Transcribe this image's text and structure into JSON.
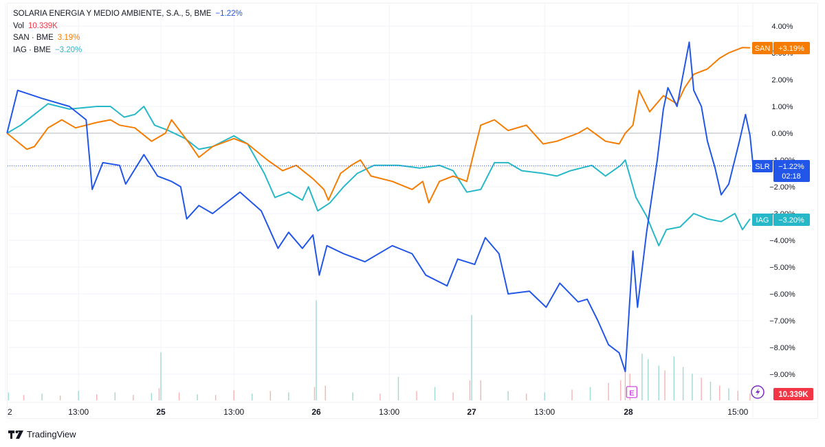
{
  "legend": {
    "main_title": "SOLARIA ENERGIA Y MEDIO AMBIENTE, S.A., 5, BME",
    "main_change": "−1.22%",
    "vol_label": "Vol",
    "vol_value": "10.339K",
    "san_label": "SAN · BME",
    "san_change": "3.19%",
    "iag_label": "IAG · BME",
    "iag_change": "−3.20%"
  },
  "colors": {
    "slr": "#2156e8",
    "san": "#f57c00",
    "iag": "#26b8c8",
    "vol_up": "#9fd9cf",
    "vol_down": "#f7b3b3",
    "vol_label": "#f23645",
    "earnings": "#d04be0",
    "event": "#7b2bbf"
  },
  "brand": "TradingView",
  "chart_data": {
    "type": "line",
    "yaxis": {
      "unit": "%",
      "ylim": [
        -9.6,
        4.3
      ],
      "ticks": [
        "4.00%",
        "3.00%",
        "2.00%",
        "1.00%",
        "0.00%",
        "−1.00%",
        "−2.00%",
        "−3.00%",
        "−4.00%",
        "−5.00%",
        "−6.00%",
        "−7.00%",
        "−8.00%",
        "−9.00%"
      ],
      "tick_values": [
        4,
        3,
        2,
        1,
        0,
        -1,
        -2,
        -3,
        -4,
        -5,
        -6,
        -7,
        -8,
        -9
      ]
    },
    "xaxis": {
      "ticks": [
        {
          "t": "24 09:00",
          "label": "2",
          "bold": false
        },
        {
          "t": "24 13:00",
          "label": "13:00",
          "bold": false
        },
        {
          "t": "25 09:00",
          "label": "25",
          "bold": true
        },
        {
          "t": "25 13:00",
          "label": "13:00",
          "bold": false
        },
        {
          "t": "26 09:00",
          "label": "26",
          "bold": true
        },
        {
          "t": "26 13:00",
          "label": "13:00",
          "bold": false
        },
        {
          "t": "27 09:00",
          "label": "27",
          "bold": true
        },
        {
          "t": "27 13:00",
          "label": "13:00",
          "bold": false
        },
        {
          "t": "28 09:00",
          "label": "28",
          "bold": true
        },
        {
          "t": "28 15:00",
          "label": "15:00",
          "bold": false
        }
      ]
    },
    "grid": true,
    "series": [
      {
        "name": "SLR",
        "tag": "SLR",
        "last_label": "−1.22%",
        "countdown": "02:18",
        "last": -1.22,
        "points": [
          [
            "24 09:05",
            0
          ],
          [
            "24 09:40",
            1.6
          ],
          [
            "24 11:00",
            1.3
          ],
          [
            "24 12:30",
            1.0
          ],
          [
            "24 13:25",
            0.5
          ],
          [
            "24 13:45",
            -2.1
          ],
          [
            "24 14:20",
            -1.1
          ],
          [
            "24 15:15",
            -1.2
          ],
          [
            "24 15:35",
            -1.9
          ],
          [
            "24 16:35",
            -0.8
          ],
          [
            "24 17:20",
            -1.6
          ],
          [
            "25 09:35",
            -1.8
          ],
          [
            "25 10:05",
            -2.0
          ],
          [
            "25 10:25",
            -3.2
          ],
          [
            "25 11:05",
            -2.7
          ],
          [
            "25 11:50",
            -3.0
          ],
          [
            "25 12:35",
            -2.6
          ],
          [
            "25 13:20",
            -2.2
          ],
          [
            "25 14:30",
            -2.9
          ],
          [
            "25 15:25",
            -4.3
          ],
          [
            "25 16:00",
            -3.7
          ],
          [
            "25 16:45",
            -4.3
          ],
          [
            "25 17:20",
            -3.8
          ],
          [
            "26 09:10",
            -5.3
          ],
          [
            "26 09:35",
            -4.2
          ],
          [
            "26 10:30",
            -4.5
          ],
          [
            "26 11:40",
            -4.8
          ],
          [
            "26 13:10",
            -4.2
          ],
          [
            "26 14:15",
            -4.5
          ],
          [
            "26 15:00",
            -5.3
          ],
          [
            "26 16:10",
            -5.7
          ],
          [
            "26 16:45",
            -4.7
          ],
          [
            "27 09:10",
            -4.9
          ],
          [
            "27 09:45",
            -3.9
          ],
          [
            "27 10:30",
            -4.5
          ],
          [
            "27 11:00",
            -6.0
          ],
          [
            "27 12:10",
            -5.9
          ],
          [
            "27 13:05",
            -6.5
          ],
          [
            "27 13:50",
            -5.6
          ],
          [
            "27 14:50",
            -6.3
          ],
          [
            "27 15:20",
            -6.2
          ],
          [
            "27 15:55",
            -7.0
          ],
          [
            "27 16:30",
            -7.9
          ],
          [
            "27 17:05",
            -8.2
          ],
          [
            "27 17:25",
            -8.9
          ],
          [
            "28 09:15",
            -4.4
          ],
          [
            "28 09:30",
            -6.5
          ],
          [
            "28 10:00",
            -3.7
          ],
          [
            "28 10:35",
            -1.0
          ],
          [
            "28 10:55",
            0.9
          ],
          [
            "28 11:10",
            1.7
          ],
          [
            "28 11:40",
            1.0
          ],
          [
            "28 12:10",
            2.8
          ],
          [
            "28 12:20",
            3.4
          ],
          [
            "28 12:35",
            1.6
          ],
          [
            "28 13:00",
            1.0
          ],
          [
            "28 13:20",
            -0.3
          ],
          [
            "28 13:45",
            -1.3
          ],
          [
            "28 14:05",
            -2.3
          ],
          [
            "28 14:30",
            -1.9
          ],
          [
            "28 15:05",
            -0.3
          ],
          [
            "28 15:25",
            0.7
          ],
          [
            "28 15:40",
            -0.1
          ],
          [
            "28 15:50",
            -1.22
          ]
        ]
      },
      {
        "name": "SAN",
        "tag": "SAN",
        "last_label": "+3.19%",
        "last": 3.19,
        "points": [
          [
            "24 09:05",
            0
          ],
          [
            "24 10:10",
            -0.6
          ],
          [
            "24 10:35",
            -0.5
          ],
          [
            "24 11:20",
            0.2
          ],
          [
            "24 12:05",
            0.5
          ],
          [
            "24 12:50",
            0.2
          ],
          [
            "24 14:00",
            0.4
          ],
          [
            "24 14:45",
            0.5
          ],
          [
            "24 15:15",
            0.3
          ],
          [
            "24 16:05",
            0.2
          ],
          [
            "24 17:00",
            -0.3
          ],
          [
            "25 09:15",
            0.0
          ],
          [
            "25 09:35",
            0.5
          ],
          [
            "25 10:35",
            -0.4
          ],
          [
            "25 11:05",
            -0.9
          ],
          [
            "25 11:50",
            -0.5
          ],
          [
            "25 13:00",
            -0.2
          ],
          [
            "25 13:45",
            -0.4
          ],
          [
            "25 14:50",
            -1.0
          ],
          [
            "25 15:40",
            -1.4
          ],
          [
            "25 16:25",
            -1.2
          ],
          [
            "25 17:20",
            -1.7
          ],
          [
            "26 09:25",
            -2.1
          ],
          [
            "26 09:40",
            -2.5
          ],
          [
            "26 10:20",
            -1.5
          ],
          [
            "26 10:55",
            -1.2
          ],
          [
            "26 11:25",
            -1.0
          ],
          [
            "26 12:00",
            -1.6
          ],
          [
            "26 13:10",
            -1.8
          ],
          [
            "26 14:15",
            -2.1
          ],
          [
            "26 14:50",
            -1.8
          ],
          [
            "26 15:10",
            -2.6
          ],
          [
            "26 15:45",
            -1.8
          ],
          [
            "26 16:30",
            -1.6
          ],
          [
            "26 17:15",
            -1.8
          ],
          [
            "27 09:10",
            -0.6
          ],
          [
            "27 09:30",
            0.3
          ],
          [
            "27 10:15",
            0.5
          ],
          [
            "27 11:00",
            0.1
          ],
          [
            "27 12:00",
            0.3
          ],
          [
            "27 12:55",
            -0.4
          ],
          [
            "27 13:40",
            -0.3
          ],
          [
            "27 14:50",
            0.0
          ],
          [
            "27 15:20",
            0.2
          ],
          [
            "27 16:20",
            -0.3
          ],
          [
            "27 17:05",
            -0.4
          ],
          [
            "27 17:25",
            0.0
          ],
          [
            "28 09:15",
            0.3
          ],
          [
            "28 09:35",
            1.6
          ],
          [
            "28 10:10",
            0.8
          ],
          [
            "28 10:55",
            1.4
          ],
          [
            "28 11:40",
            1.1
          ],
          [
            "28 12:05",
            1.7
          ],
          [
            "28 12:35",
            2.2
          ],
          [
            "28 13:20",
            2.4
          ],
          [
            "28 14:00",
            2.8
          ],
          [
            "28 14:30",
            3.0
          ],
          [
            "28 15:15",
            3.2
          ],
          [
            "28 15:40",
            3.19
          ]
        ]
      },
      {
        "name": "IAG",
        "tag": "IAG",
        "last_label": "−3.20%",
        "last": -3.2,
        "points": [
          [
            "24 09:05",
            0
          ],
          [
            "24 09:50",
            0.3
          ],
          [
            "24 10:35",
            0.7
          ],
          [
            "24 11:20",
            1.1
          ],
          [
            "24 12:30",
            0.9
          ],
          [
            "24 14:00",
            1.0
          ],
          [
            "24 14:45",
            1.0
          ],
          [
            "24 15:30",
            0.6
          ],
          [
            "24 16:05",
            0.7
          ],
          [
            "24 16:35",
            1.0
          ],
          [
            "24 17:10",
            0.3
          ],
          [
            "25 09:25",
            0.1
          ],
          [
            "25 10:20",
            -0.2
          ],
          [
            "25 11:05",
            -0.6
          ],
          [
            "25 11:50",
            -0.5
          ],
          [
            "25 13:00",
            -0.1
          ],
          [
            "25 13:45",
            -0.4
          ],
          [
            "25 14:40",
            -1.5
          ],
          [
            "25 15:15",
            -2.4
          ],
          [
            "25 16:00",
            -2.2
          ],
          [
            "25 16:45",
            -2.5
          ],
          [
            "25 17:05",
            -2.0
          ],
          [
            "26 09:05",
            -2.9
          ],
          [
            "26 09:45",
            -2.6
          ],
          [
            "26 10:30",
            -2.0
          ],
          [
            "26 11:15",
            -1.5
          ],
          [
            "26 12:10",
            -1.2
          ],
          [
            "26 13:30",
            -1.2
          ],
          [
            "26 14:40",
            -1.3
          ],
          [
            "26 15:45",
            -1.2
          ],
          [
            "26 16:30",
            -1.4
          ],
          [
            "26 17:15",
            -2.2
          ],
          [
            "27 09:30",
            -2.1
          ],
          [
            "27 10:15",
            -1.1
          ],
          [
            "27 11:00",
            -1.1
          ],
          [
            "27 11:45",
            -1.4
          ],
          [
            "27 12:55",
            -1.5
          ],
          [
            "27 13:40",
            -1.6
          ],
          [
            "27 14:25",
            -1.4
          ],
          [
            "27 15:35",
            -1.2
          ],
          [
            "27 16:20",
            -1.6
          ],
          [
            "27 17:10",
            -1.2
          ],
          [
            "27 17:25",
            -1.0
          ],
          [
            "28 09:25",
            -2.4
          ],
          [
            "28 10:00",
            -3.1
          ],
          [
            "28 10:40",
            -4.2
          ],
          [
            "28 11:05",
            -3.6
          ],
          [
            "28 11:50",
            -3.5
          ],
          [
            "28 12:35",
            -3.0
          ],
          [
            "28 13:20",
            -3.2
          ],
          [
            "28 14:05",
            -3.3
          ],
          [
            "28 14:50",
            -3.0
          ],
          [
            "28 15:15",
            -3.6
          ],
          [
            "28 15:40",
            -3.2
          ]
        ]
      }
    ],
    "volume": {
      "unit": "K",
      "last_label": "10.339K",
      "bars": [
        [
          "24 09:10",
          12,
          "up"
        ],
        [
          "24 10:00",
          8,
          "down"
        ],
        [
          "24 11:00",
          10,
          "up"
        ],
        [
          "24 12:00",
          7,
          "down"
        ],
        [
          "24 13:00",
          14,
          "up"
        ],
        [
          "24 14:00",
          9,
          "down"
        ],
        [
          "24 15:00",
          12,
          "up"
        ],
        [
          "24 16:00",
          8,
          "down"
        ],
        [
          "24 17:00",
          11,
          "up"
        ],
        [
          "24 17:25",
          18,
          "down"
        ],
        [
          "25 09:00",
          72,
          "up"
        ],
        [
          "25 10:00",
          12,
          "down"
        ],
        [
          "25 11:00",
          9,
          "up"
        ],
        [
          "25 12:00",
          8,
          "down"
        ],
        [
          "25 13:00",
          15,
          "down"
        ],
        [
          "25 14:00",
          10,
          "up"
        ],
        [
          "25 15:00",
          14,
          "down"
        ],
        [
          "25 16:00",
          12,
          "up"
        ],
        [
          "25 17:25",
          20,
          "down"
        ],
        [
          "26 09:00",
          150,
          "up"
        ],
        [
          "26 09:30",
          22,
          "down"
        ],
        [
          "26 11:00",
          12,
          "up"
        ],
        [
          "26 12:30",
          10,
          "down"
        ],
        [
          "26 13:30",
          35,
          "up"
        ],
        [
          "26 14:30",
          14,
          "down"
        ],
        [
          "26 15:30",
          20,
          "up"
        ],
        [
          "26 16:30",
          12,
          "down"
        ],
        [
          "26 17:25",
          30,
          "down"
        ],
        [
          "27 09:00",
          128,
          "up"
        ],
        [
          "27 09:30",
          30,
          "down"
        ],
        [
          "27 11:00",
          14,
          "up"
        ],
        [
          "27 12:00",
          10,
          "down"
        ],
        [
          "27 13:00",
          12,
          "up"
        ],
        [
          "27 14:30",
          16,
          "down"
        ],
        [
          "27 15:30",
          20,
          "up"
        ],
        [
          "27 16:30",
          26,
          "down"
        ],
        [
          "27 17:10",
          30,
          "down"
        ],
        [
          "27 17:25",
          45,
          "down"
        ],
        [
          "28 09:05",
          40,
          "down"
        ],
        [
          "28 09:45",
          70,
          "up"
        ],
        [
          "28 10:05",
          62,
          "up"
        ],
        [
          "28 10:40",
          52,
          "up"
        ],
        [
          "28 11:00",
          45,
          "down"
        ],
        [
          "28 11:30",
          66,
          "up"
        ],
        [
          "28 12:00",
          50,
          "up"
        ],
        [
          "28 12:30",
          40,
          "up"
        ],
        [
          "28 13:00",
          34,
          "down"
        ],
        [
          "28 13:30",
          28,
          "up"
        ],
        [
          "28 14:00",
          22,
          "down"
        ],
        [
          "28 14:30",
          18,
          "up"
        ],
        [
          "28 15:00",
          14,
          "down"
        ],
        [
          "28 15:40",
          10.339,
          "down"
        ]
      ]
    },
    "markers": [
      {
        "t": "28 09:10",
        "label": "E",
        "type": "earnings"
      },
      {
        "t": "28 15:50",
        "type": "event"
      }
    ]
  }
}
